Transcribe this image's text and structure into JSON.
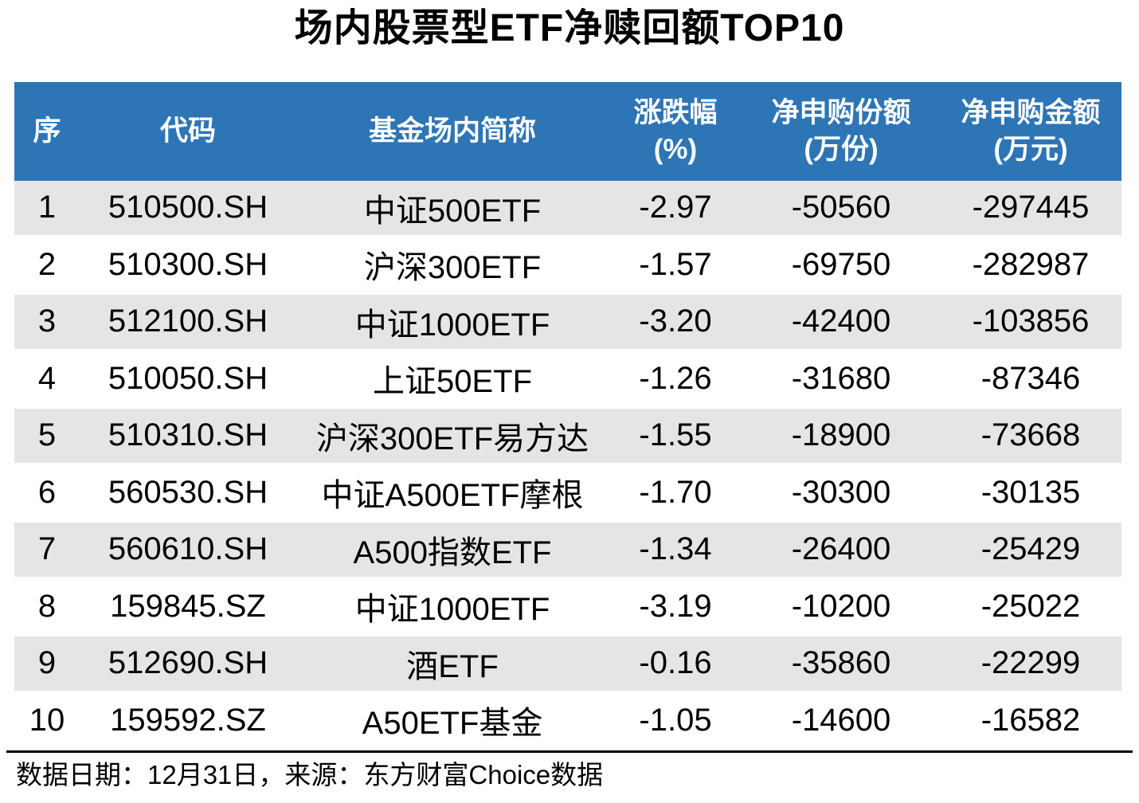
{
  "title": "场内股票型ETF净赎回额TOP10",
  "colors": {
    "header_bg": "#2E75B6",
    "stripe_bg": "#E5E5E5",
    "text": "#000000"
  },
  "table": {
    "columns": [
      {
        "key": "rank",
        "label": "序",
        "sub": ""
      },
      {
        "key": "code",
        "label": "代码",
        "sub": ""
      },
      {
        "key": "name",
        "label": "基金场内简称",
        "sub": ""
      },
      {
        "key": "change",
        "label": "涨跌幅",
        "sub": "(%)"
      },
      {
        "key": "net-shares",
        "label": "净申购份额",
        "sub": "(万份)"
      },
      {
        "key": "net-amount",
        "label": "净申购金额",
        "sub": "(万元)"
      }
    ],
    "rows": [
      [
        "1",
        "510500.SH",
        "中证500ETF",
        "-2.97",
        "-50560",
        "-297445"
      ],
      [
        "2",
        "510300.SH",
        "沪深300ETF",
        "-1.57",
        "-69750",
        "-282987"
      ],
      [
        "3",
        "512100.SH",
        "中证1000ETF",
        "-3.20",
        "-42400",
        "-103856"
      ],
      [
        "4",
        "510050.SH",
        "上证50ETF",
        "-1.26",
        "-31680",
        "-87346"
      ],
      [
        "5",
        "510310.SH",
        "沪深300ETF易方达",
        "-1.55",
        "-18900",
        "-73668"
      ],
      [
        "6",
        "560530.SH",
        "中证A500ETF摩根",
        "-1.70",
        "-30300",
        "-30135"
      ],
      [
        "7",
        "560610.SH",
        "A500指数ETF",
        "-1.34",
        "-26400",
        "-25429"
      ],
      [
        "8",
        "159845.SZ",
        "中证1000ETF",
        "-3.19",
        "-10200",
        "-25022"
      ],
      [
        "9",
        "512690.SH",
        "酒ETF",
        "-0.16",
        "-35860",
        "-22299"
      ],
      [
        "10",
        "159592.SZ",
        "A50ETF基金",
        "-1.05",
        "-14600",
        "-16582"
      ]
    ]
  },
  "footer": {
    "text": "数据日期：12月31日，来源：东方财富Choice数据"
  },
  "chart_data": {
    "type": "table",
    "title": "场内股票型ETF净赎回额TOP10",
    "columns": [
      "序",
      "代码",
      "基金场内简称",
      "涨跌幅(%)",
      "净申购份额(万份)",
      "净申购金额(万元)"
    ],
    "rows": [
      [
        1,
        "510500.SH",
        "中证500ETF",
        -2.97,
        -50560,
        -297445
      ],
      [
        2,
        "510300.SH",
        "沪深300ETF",
        -1.57,
        -69750,
        -282987
      ],
      [
        3,
        "512100.SH",
        "中证1000ETF",
        -3.2,
        -42400,
        -103856
      ],
      [
        4,
        "510050.SH",
        "上证50ETF",
        -1.26,
        -31680,
        -87346
      ],
      [
        5,
        "510310.SH",
        "沪深300ETF易方达",
        -1.55,
        -18900,
        -73668
      ],
      [
        6,
        "560530.SH",
        "中证A500ETF摩根",
        -1.7,
        -30300,
        -30135
      ],
      [
        7,
        "560610.SH",
        "A500指数ETF",
        -1.34,
        -26400,
        -25429
      ],
      [
        8,
        "159845.SZ",
        "中证1000ETF",
        -3.19,
        -10200,
        -25022
      ],
      [
        9,
        "512690.SH",
        "酒ETF",
        -0.16,
        -35860,
        -22299
      ],
      [
        10,
        "159592.SZ",
        "A50ETF基金",
        -1.05,
        -14600,
        -16582
      ]
    ],
    "source_note": "数据日期：12月31日，来源：东方财富Choice数据",
    "layout": {
      "striped_rows": "odd rows gray #E5E5E5, even rows white",
      "header_style": "blue #2E75B6 background, white bold text",
      "alignment": "all cells centered"
    }
  }
}
